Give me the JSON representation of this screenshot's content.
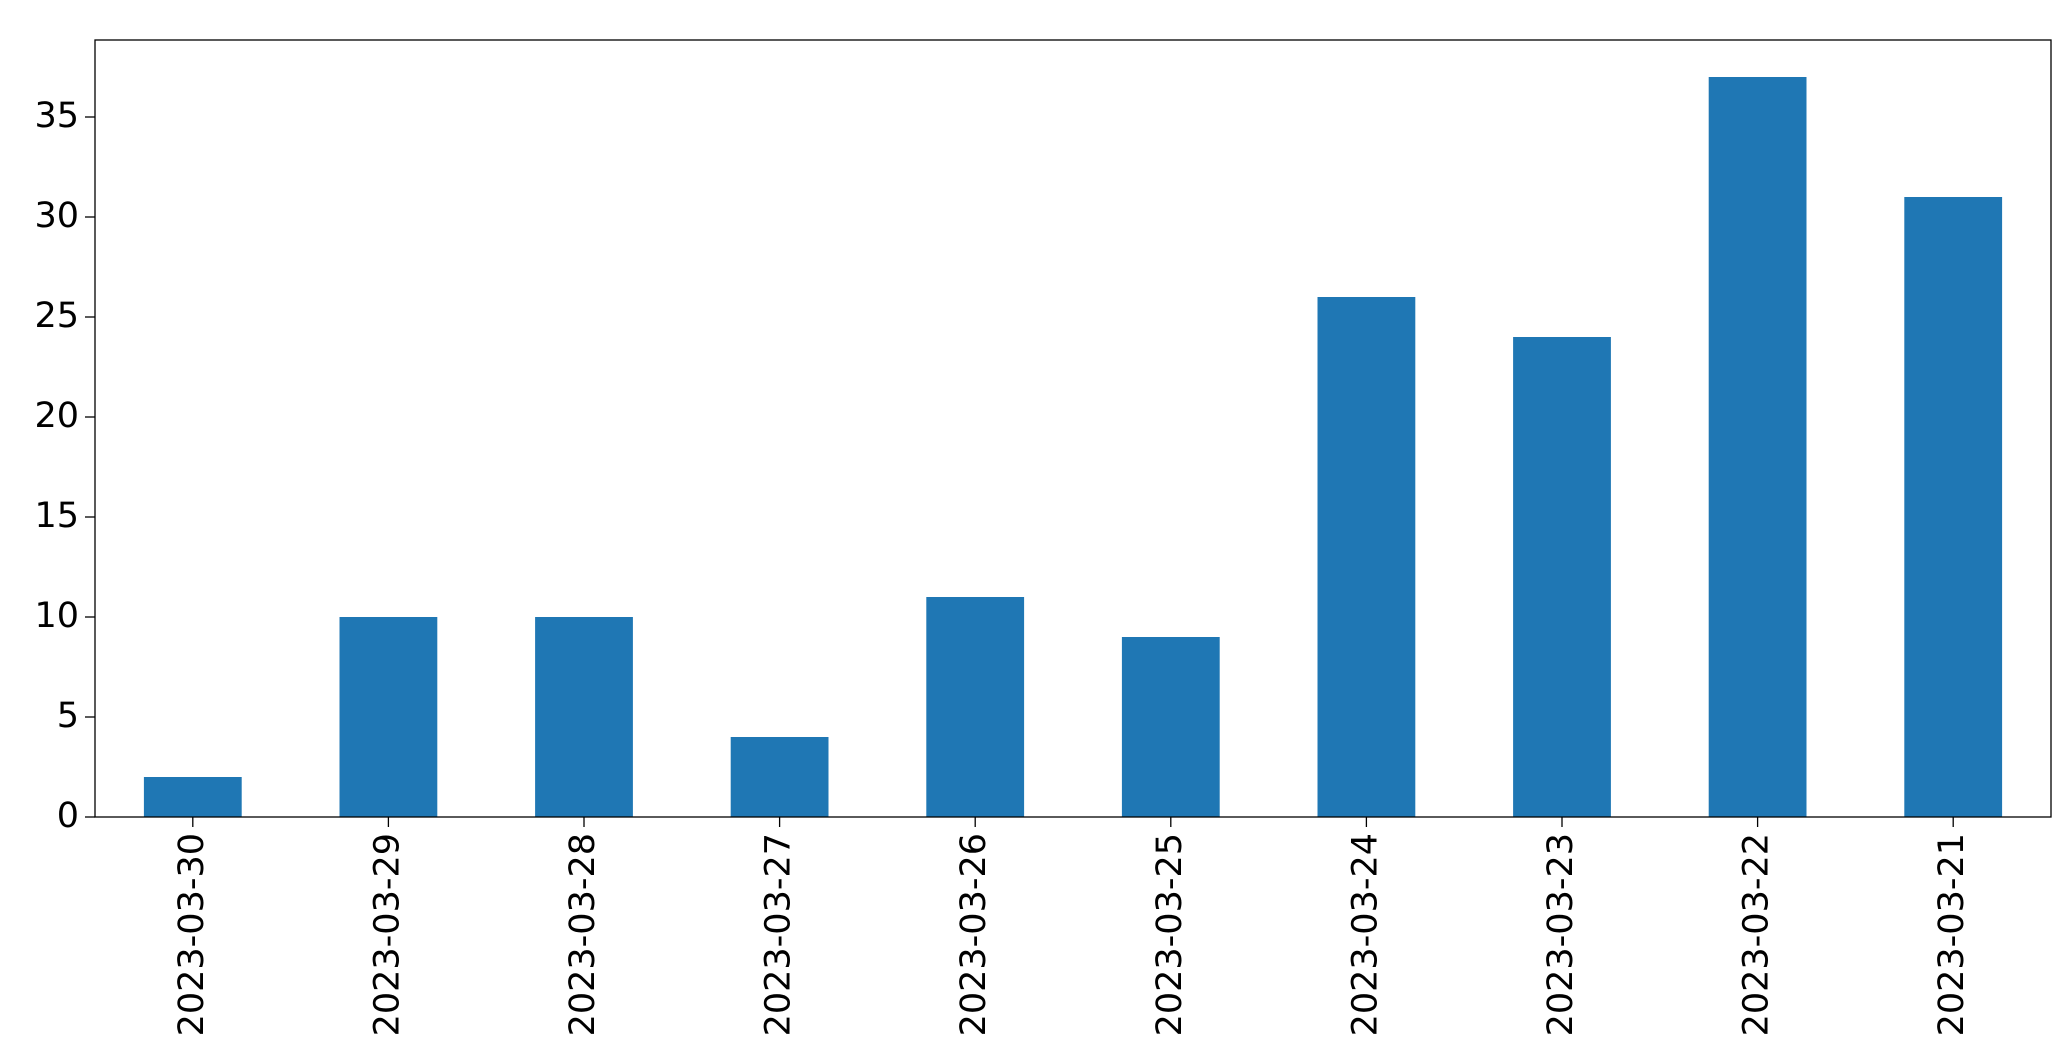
{
  "chart_data": {
    "type": "bar",
    "categories": [
      "2023-03-30",
      "2023-03-29",
      "2023-03-28",
      "2023-03-27",
      "2023-03-26",
      "2023-03-25",
      "2023-03-24",
      "2023-03-23",
      "2023-03-22",
      "2023-03-21"
    ],
    "values": [
      2,
      10,
      10,
      4,
      11,
      9,
      26,
      24,
      37,
      31
    ],
    "color": "#1f77b4",
    "ylim": [
      0,
      38.85
    ],
    "yticks": [
      0,
      5,
      10,
      15,
      20,
      25,
      30,
      35
    ],
    "grid": false
  }
}
